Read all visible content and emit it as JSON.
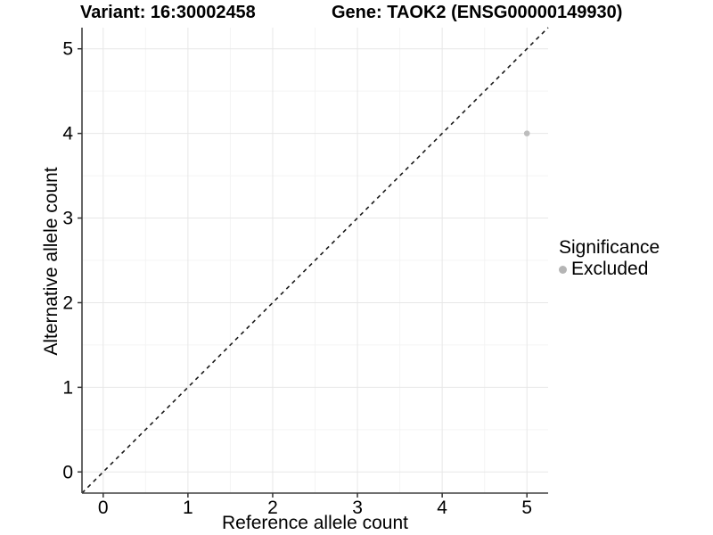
{
  "chart_data": {
    "type": "scatter",
    "titles": {
      "variant": "Variant: 16:30002458",
      "gene": "Gene: TAOK2 (ENSG00000149930)"
    },
    "xlabel": "Reference allele count",
    "ylabel": "Alternative allele count",
    "x_ticks": [
      0,
      1,
      2,
      3,
      4,
      5
    ],
    "y_ticks": [
      0,
      1,
      2,
      3,
      4,
      5
    ],
    "xlim": [
      -0.25,
      5.25
    ],
    "ylim": [
      -0.25,
      5.25
    ],
    "grid": {
      "major": true,
      "minor": true,
      "minor_step": 0.5
    },
    "reference_line": {
      "kind": "identity",
      "slope": 1,
      "intercept": 0,
      "style": "dashed"
    },
    "points": [
      {
        "x": 5,
        "y": 4,
        "series": "Excluded"
      }
    ],
    "legend": {
      "title": "Significance",
      "position": "right",
      "items": [
        {
          "label": "Excluded",
          "color": "#bdbdbd"
        }
      ]
    }
  },
  "colors": {
    "point_excluded": "#bdbdbd",
    "legend_dot": "#b5b5b5",
    "grid_major": "#e7e7e7",
    "grid_minor": "#f4f4f4",
    "axis_line": "#404040",
    "tick_mark": "#333333",
    "reference_line": "#1a1a1a",
    "text": "#000000",
    "panel_background": "#ffffff"
  }
}
